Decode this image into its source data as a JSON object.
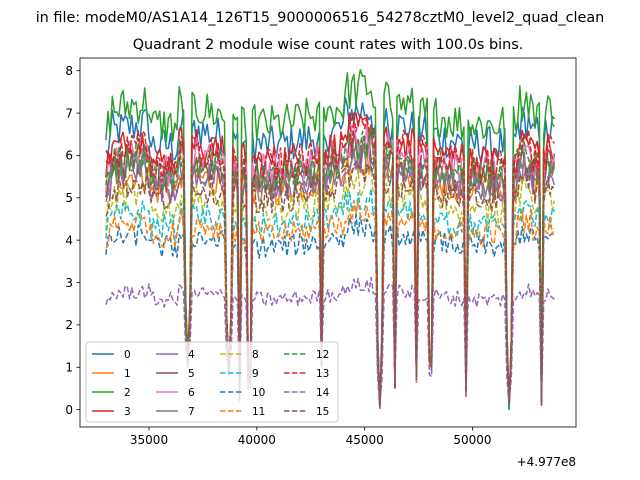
{
  "chart_data": {
    "type": "line",
    "suptitle": "in file: modeM0/AS1A14_126T15_9000006516_54278cztM0_level2_quad_clean",
    "title": "Quadrant 2 module wise count rates with 100.0s bins.",
    "xlabel": "",
    "ylabel": "",
    "x_offset_label": "+4.977e8",
    "xlim": [
      31800,
      54800
    ],
    "ylim": [
      -0.41,
      8.3
    ],
    "xticks": [
      35000,
      40000,
      45000,
      50000
    ],
    "xtick_labels": [
      "35000",
      "40000",
      "45000",
      "50000"
    ],
    "yticks": [
      0,
      1,
      2,
      3,
      4,
      5,
      6,
      7,
      8
    ],
    "ytick_labels": [
      "0",
      "1",
      "2",
      "3",
      "4",
      "5",
      "6",
      "7",
      "8"
    ],
    "x_start": 33000,
    "x_end": 53800,
    "bin_size": 100,
    "gaps": [
      {
        "start": 36600,
        "end": 37000,
        "min": 1.0
      },
      {
        "start": 38500,
        "end": 38900,
        "min": 0.8
      },
      {
        "start": 39100,
        "end": 39300,
        "min": 0.2
      },
      {
        "start": 39500,
        "end": 39800,
        "min": 0.1
      },
      {
        "start": 42900,
        "end": 43100,
        "min": 1.0
      },
      {
        "start": 45500,
        "end": 45900,
        "min": 0.0
      },
      {
        "start": 46300,
        "end": 46500,
        "min": 0.5
      },
      {
        "start": 47300,
        "end": 47500,
        "min": 0.6
      },
      {
        "start": 47900,
        "end": 48200,
        "min": 0.5
      },
      {
        "start": 49600,
        "end": 49800,
        "min": 0.3
      },
      {
        "start": 51500,
        "end": 51900,
        "min": 0.0
      },
      {
        "start": 53100,
        "end": 53300,
        "min": 0.1
      }
    ],
    "legend": {
      "location": "lower-left",
      "ncol": 4,
      "entries": [
        "0",
        "1",
        "2",
        "3",
        "4",
        "5",
        "6",
        "7",
        "8",
        "9",
        "10",
        "11",
        "12",
        "13",
        "14",
        "15"
      ]
    },
    "series": [
      {
        "name": "0",
        "color": "#1f77b4",
        "style": "solid",
        "base": 6.5
      },
      {
        "name": "1",
        "color": "#ff7f0e",
        "style": "solid",
        "base": 5.4
      },
      {
        "name": "2",
        "color": "#2ca02c",
        "style": "solid",
        "base": 7.0
      },
      {
        "name": "3",
        "color": "#d62728",
        "style": "solid",
        "base": 6.1
      },
      {
        "name": "4",
        "color": "#9467bd",
        "style": "solid",
        "base": 5.5
      },
      {
        "name": "5",
        "color": "#8c564b",
        "style": "solid",
        "base": 5.7
      },
      {
        "name": "6",
        "color": "#e377c2",
        "style": "solid",
        "base": 5.9
      },
      {
        "name": "7",
        "color": "#7f7f7f",
        "style": "solid",
        "base": 5.5
      },
      {
        "name": "8",
        "color": "#bcbd22",
        "style": "dashed",
        "base": 4.9
      },
      {
        "name": "9",
        "color": "#17becf",
        "style": "dashed",
        "base": 4.5
      },
      {
        "name": "10",
        "color": "#1f77b4",
        "style": "dashed",
        "base": 4.0
      },
      {
        "name": "11",
        "color": "#ff7f0e",
        "style": "dashed",
        "base": 4.3
      },
      {
        "name": "12",
        "color": "#2ca02c",
        "style": "dashed",
        "base": 5.8
      },
      {
        "name": "13",
        "color": "#d62728",
        "style": "dashed",
        "base": 6.0
      },
      {
        "name": "14",
        "color": "#9467bd",
        "style": "dashed",
        "base": 2.7
      },
      {
        "name": "15",
        "color": "#8c564b",
        "style": "dashed",
        "base": 5.2
      }
    ]
  }
}
